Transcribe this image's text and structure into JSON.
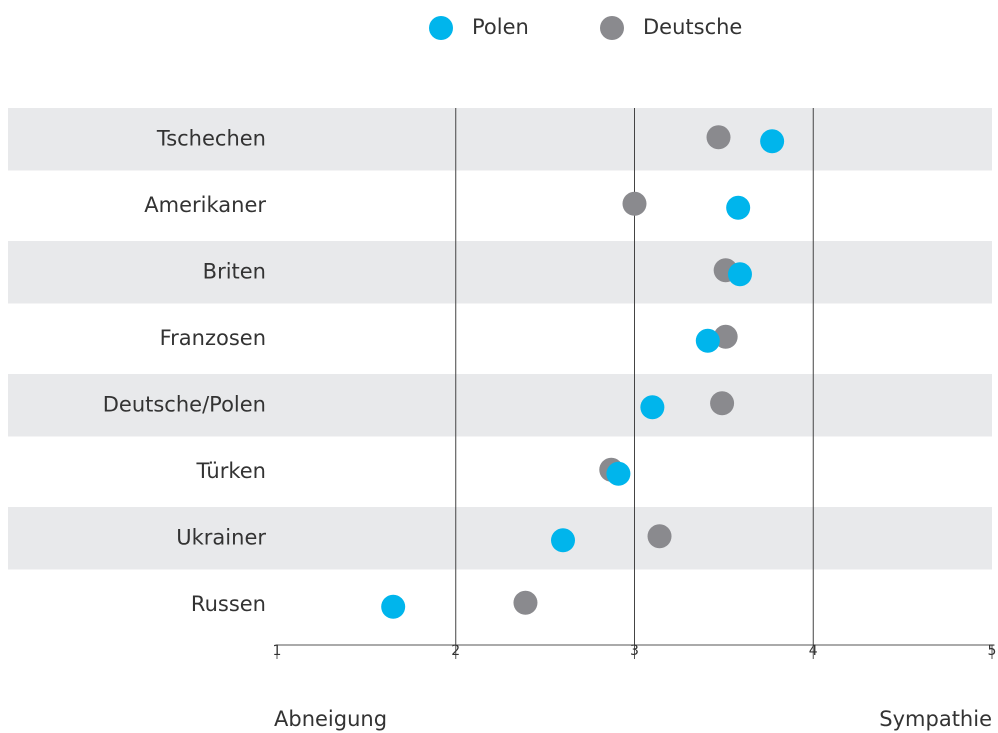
{
  "chart_data": {
    "type": "dot",
    "categories": [
      "Tschechen",
      "Amerikaner",
      "Briten",
      "Franzosen",
      "Deutsche/Polen",
      "Türken",
      "Ukrainer",
      "Russen"
    ],
    "series": [
      {
        "name": "Polen",
        "color": "#00b5ec",
        "values": [
          3.77,
          3.58,
          3.59,
          3.41,
          3.1,
          2.91,
          2.6,
          1.65
        ]
      },
      {
        "name": "Deutsche",
        "color": "#8a8a8e",
        "values": [
          3.47,
          3.0,
          3.51,
          3.51,
          3.49,
          2.87,
          3.14,
          2.39
        ]
      }
    ],
    "xlim": [
      1,
      5
    ],
    "xticks": [
      1,
      2,
      3,
      4,
      5
    ],
    "x_label_left": "Abneigung",
    "x_label_right": "Sympathie",
    "grid": true
  }
}
